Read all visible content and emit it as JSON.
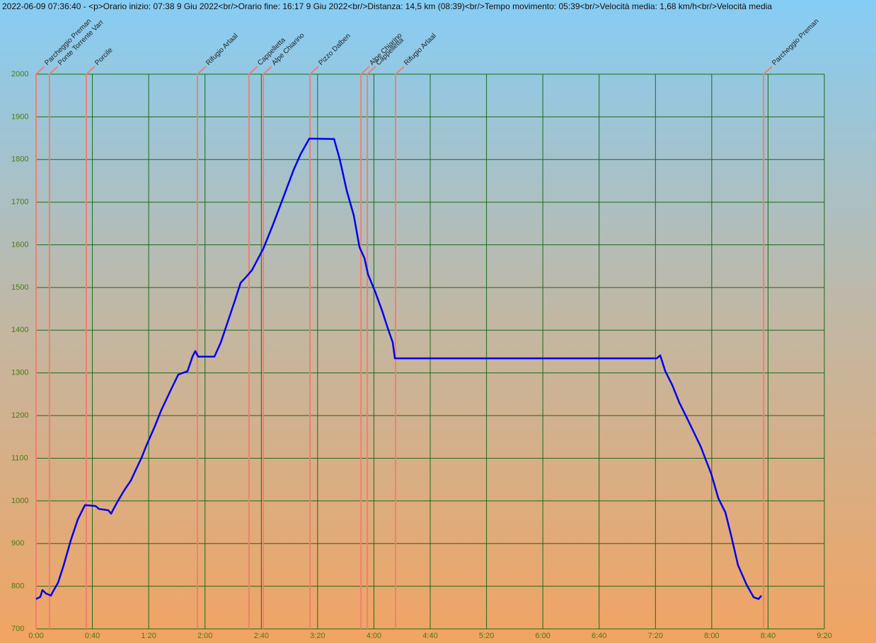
{
  "chart_data": {
    "type": "line",
    "title": "2022-06-09 07:36:40 - <p>Orario inizio: 07:38 9 Giu 2022<br/>Orario fine: 16:17 9 Giu 2022<br/>Distanza: 14,5 km (08:39)<br/>Tempo movimento: 05:39<br/>Velocità media: 1,68 km/h<br/>Velocità media",
    "series": [
      {
        "color": "#0000ee",
        "x": [
          0,
          3,
          4.5,
          7,
          10.5,
          12.6,
          15.6,
          19.6,
          24.6,
          29.7,
          34.7,
          42.2,
          44.7,
          51.3,
          53.3,
          57.3,
          62.3,
          67.4,
          70.9,
          74.9,
          78.4,
          84,
          89,
          95,
          101,
          107.6,
          111.1,
          113.1,
          115.2,
          126.7,
          131.2,
          136.2,
          141.3,
          145.3,
          149.3,
          153.4,
          161.4,
          167.9,
          175.5,
          183,
          188,
          194.1,
          211.7,
          215.7,
          220.7,
          225.7,
          229.8,
          233.3,
          235.8,
          240.8,
          245.9,
          249.9,
          253.4,
          254.9,
          440.9,
          443.4,
          447,
          452,
          457,
          462,
          467.4,
          472.2,
          475.7,
          479.6,
          484.7,
          489.7,
          493.7,
          498.7,
          504.8,
          509.8,
          513.3,
          515.3
        ],
        "values": [
          770,
          775,
          791,
          783,
          778,
          791,
          808,
          849,
          907,
          957,
          990,
          988,
          981,
          978,
          970,
          995,
          1023,
          1048,
          1073,
          1101,
          1130,
          1172,
          1213,
          1255,
          1296,
          1304,
          1338,
          1351,
          1338,
          1338,
          1371,
          1420,
          1470,
          1511,
          1525,
          1541,
          1591,
          1644,
          1710,
          1776,
          1813,
          1849,
          1848,
          1801,
          1727,
          1669,
          1594,
          1569,
          1531,
          1491,
          1445,
          1404,
          1371,
          1334,
          1334,
          1341,
          1304,
          1271,
          1230,
          1197,
          1160,
          1127,
          1097,
          1064,
          1006,
          973,
          920,
          849,
          803,
          774,
          770,
          778
        ]
      }
    ],
    "markers": [
      {
        "label": "Parcheggio Preman",
        "x": 0
      },
      {
        "label": "Ponte Torrente Varr",
        "x": 9.5
      },
      {
        "label": "Porcile",
        "x": 35.7
      },
      {
        "label": "Rifugio Arlaal",
        "x": 114.6
      },
      {
        "label": "Cappelletta",
        "x": 151.3
      },
      {
        "label": "Alpe Chiarino",
        "x": 161.4
      },
      {
        "label": "Pizzo Dalben",
        "x": 194.6
      },
      {
        "label": "Alpe Chiarino",
        "x": 230.8
      },
      {
        "label": "Cappelletta",
        "x": 235.3
      },
      {
        "label": "Rifugio Arlaal",
        "x": 255.4
      },
      {
        "label": "Parcheggio Preman",
        "x": 516.8
      }
    ],
    "marker_color": "#f08070",
    "grid_color": "#1a6a1a",
    "xlim": [
      0,
      560
    ],
    "xticks": [
      {
        "value": 0,
        "label": "0:00"
      },
      {
        "value": 40,
        "label": "0:40"
      },
      {
        "value": 80,
        "label": "1:20"
      },
      {
        "value": 120,
        "label": "2:00"
      },
      {
        "value": 160,
        "label": "2:40"
      },
      {
        "value": 200,
        "label": "3:20"
      },
      {
        "value": 240,
        "label": "4:00"
      },
      {
        "value": 280,
        "label": "4:40"
      },
      {
        "value": 320,
        "label": "5:20"
      },
      {
        "value": 360,
        "label": "6:00"
      },
      {
        "value": 400,
        "label": "6:40"
      },
      {
        "value": 440,
        "label": "7:20"
      },
      {
        "value": 480,
        "label": "8:00"
      },
      {
        "value": 520,
        "label": "8:40"
      },
      {
        "value": 560,
        "label": "9:20"
      }
    ],
    "ylim": [
      700,
      2000
    ],
    "yticks": [
      700,
      800,
      900,
      1000,
      1100,
      1200,
      1300,
      1400,
      1500,
      1600,
      1700,
      1800,
      1900,
      2000
    ],
    "grid": true
  }
}
